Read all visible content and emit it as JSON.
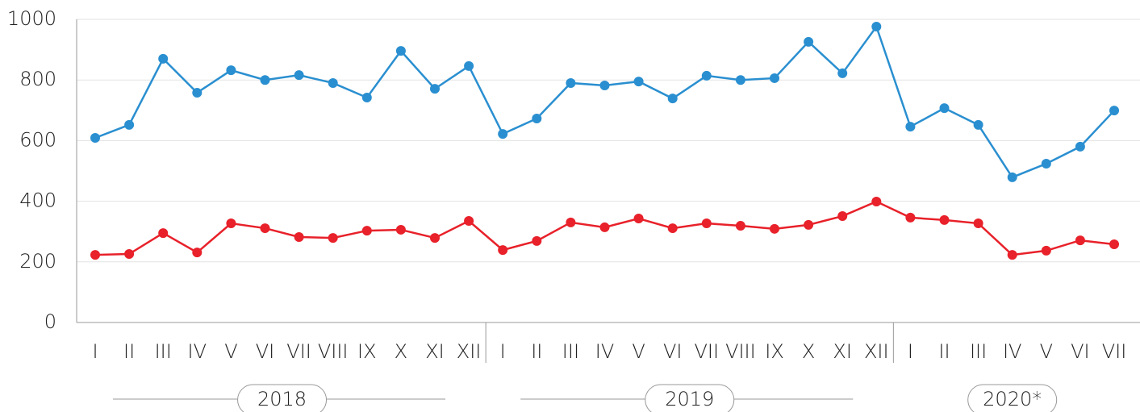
{
  "chart_data": {
    "type": "line",
    "categories": [
      "I",
      "II",
      "III",
      "IV",
      "V",
      "VI",
      "VII",
      "VIII",
      "IX",
      "X",
      "XI",
      "XII",
      "I",
      "II",
      "III",
      "IV",
      "V",
      "VI",
      "VII",
      "VIII",
      "IX",
      "X",
      "XI",
      "XII",
      "I",
      "II",
      "III",
      "IV",
      "V",
      "VI",
      "VII"
    ],
    "groups": [
      "2018",
      "2019",
      "2020*"
    ],
    "series": [
      {
        "color": "#2a8fd0",
        "values": [
          609,
          652,
          870,
          758,
          832,
          800,
          816,
          790,
          742,
          896,
          771,
          846,
          622,
          673,
          790,
          782,
          795,
          739,
          814,
          800,
          806,
          926,
          822,
          976,
          646,
          707,
          652,
          479,
          524,
          580,
          699
        ]
      },
      {
        "color": "#e8212a",
        "values": [
          223,
          226,
          295,
          231,
          327,
          311,
          282,
          279,
          303,
          306,
          279,
          335,
          239,
          269,
          330,
          314,
          343,
          311,
          327,
          319,
          309,
          322,
          351,
          399,
          346,
          338,
          327,
          223,
          237,
          271,
          258
        ]
      }
    ],
    "ylim": [
      0,
      1000
    ],
    "yticks": [
      0,
      200,
      400,
      600,
      800,
      1000
    ],
    "grid": true
  }
}
